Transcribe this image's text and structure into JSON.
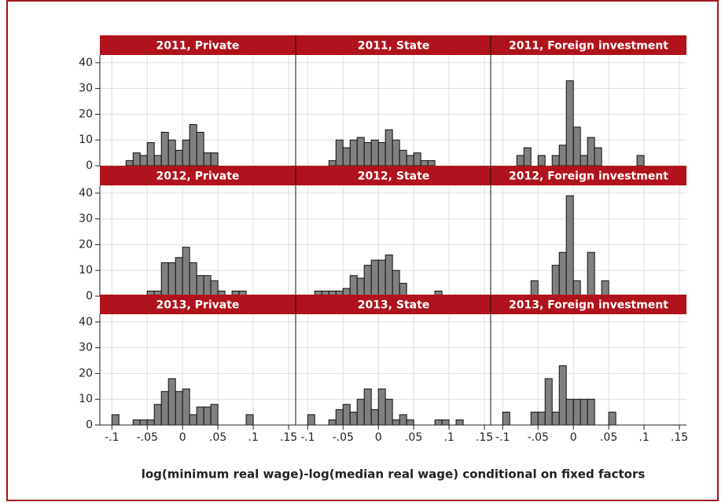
{
  "chart_data": {
    "type": "histogram",
    "xlabel": "log(minimum real wage)-log(median real wage) conditional on fixed factors",
    "xlim": [
      -0.117,
      0.16
    ],
    "ylim": [
      0,
      43
    ],
    "xticks": [
      {
        "value": -0.1,
        "label": "-.1"
      },
      {
        "value": -0.05,
        "label": "-.05"
      },
      0,
      {
        "value": 0.05,
        "label": ".05"
      },
      {
        "value": 0.1,
        "label": ".1"
      },
      {
        "value": 0.15,
        "label": ".15"
      }
    ],
    "yticks": [
      0,
      10,
      20,
      30,
      40
    ],
    "grid": true,
    "color": "#808080",
    "strip_color": "#b0131b",
    "bins": [
      -0.1,
      -0.09,
      -0.08,
      -0.07,
      -0.06,
      -0.05,
      -0.04,
      -0.03,
      -0.02,
      -0.01,
      0,
      0.01,
      0.02,
      0.03,
      0.04,
      0.05,
      0.06,
      0.07,
      0.08,
      0.09,
      0.1,
      0.11,
      0.12,
      0.13,
      0.14,
      0.15
    ],
    "panels": [
      {
        "title": "2011, Private",
        "values": [
          0,
          0,
          2,
          5,
          4,
          9,
          4,
          13,
          10,
          6,
          10,
          16,
          13,
          5,
          5,
          0,
          0,
          0,
          0,
          0,
          0,
          0,
          0,
          0,
          0
        ]
      },
      {
        "title": "2011, State",
        "values": [
          0,
          0,
          0,
          2,
          10,
          7,
          10,
          11,
          9,
          10,
          9,
          14,
          10,
          6,
          4,
          5,
          2,
          2,
          0,
          0,
          0,
          0,
          0,
          0,
          0
        ]
      },
      {
        "title": "2011, Foreign investment",
        "values": [
          0,
          0,
          4,
          7,
          0,
          4,
          0,
          4,
          8,
          33,
          15,
          4,
          11,
          7,
          0,
          0,
          0,
          0,
          0,
          4,
          0,
          0,
          0,
          0,
          0
        ]
      },
      {
        "title": "2012, Private",
        "values": [
          0,
          0,
          0,
          0,
          0,
          2,
          2,
          13,
          13,
          15,
          19,
          13,
          8,
          8,
          6,
          2,
          0,
          2,
          2,
          0,
          0,
          0,
          0,
          0,
          0
        ]
      },
      {
        "title": "2012, State",
        "values": [
          0,
          2,
          2,
          2,
          2,
          3,
          8,
          7,
          12,
          14,
          14,
          16,
          10,
          5,
          0,
          0,
          0,
          0,
          2,
          0,
          0,
          0,
          0,
          0,
          0
        ]
      },
      {
        "title": "2012, Foreign investment",
        "values": [
          0,
          0,
          0,
          0,
          6,
          0,
          0,
          12,
          17,
          39,
          6,
          0,
          17,
          0,
          6,
          0,
          0,
          0,
          0,
          0,
          0,
          0,
          0,
          0,
          0
        ]
      },
      {
        "title": "2013, Private",
        "values": [
          4,
          0,
          0,
          2,
          2,
          2,
          8,
          13,
          18,
          13,
          14,
          4,
          7,
          7,
          8,
          0,
          0,
          0,
          0,
          4,
          0,
          0,
          0,
          0,
          0
        ]
      },
      {
        "title": "2013, State",
        "values": [
          4,
          0,
          0,
          2,
          6,
          8,
          5,
          10,
          14,
          6,
          14,
          10,
          2,
          4,
          2,
          0,
          0,
          0,
          2,
          2,
          0,
          2,
          0,
          0,
          0
        ]
      },
      {
        "title": "2013, Foreign investment",
        "values": [
          5,
          0,
          0,
          0,
          5,
          5,
          18,
          5,
          23,
          10,
          10,
          10,
          10,
          0,
          0,
          5,
          0,
          0,
          0,
          0,
          0,
          0,
          0,
          0,
          0
        ]
      }
    ]
  }
}
